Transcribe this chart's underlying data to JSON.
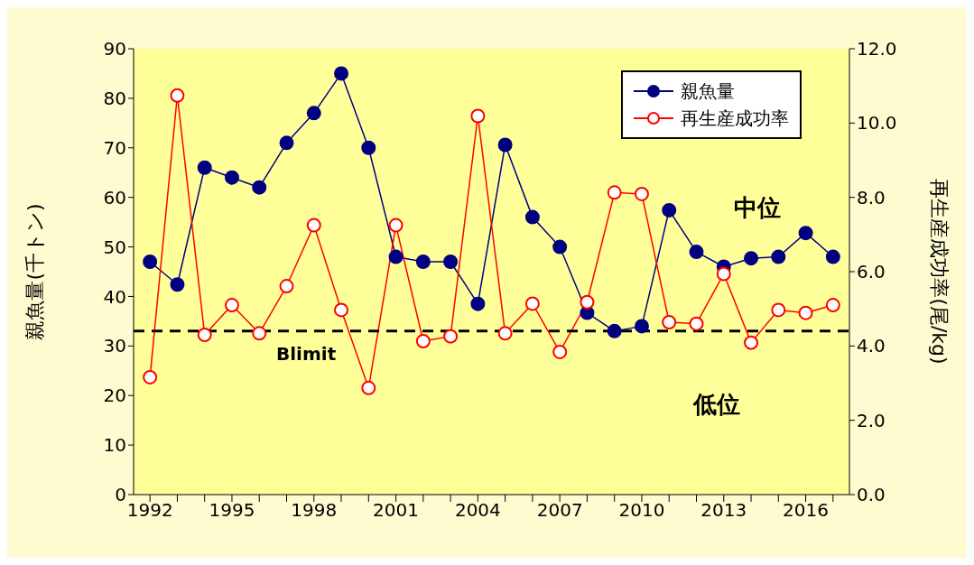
{
  "chart_data": {
    "type": "line",
    "ylabel": "親魚量(千トン)",
    "y2label": "再生産成功率(尾/kg)",
    "x": [
      1992,
      1993,
      1994,
      1995,
      1996,
      1997,
      1998,
      1999,
      2000,
      2001,
      2002,
      2003,
      2004,
      2005,
      2006,
      2007,
      2008,
      2009,
      2010,
      2011,
      2012,
      2013,
      2014,
      2015,
      2016,
      2017
    ],
    "series": [
      {
        "name": "親魚量",
        "color": "#000080",
        "values": [
          47,
          42.4,
          66,
          64,
          62,
          71,
          77,
          85,
          70,
          48,
          47,
          47,
          38.5,
          70.6,
          56,
          50,
          36.7,
          33,
          34,
          57.4,
          49,
          46,
          47.7,
          48,
          52.8,
          48
        ]
      },
      {
        "name": "再生産成功率",
        "color": "#ff0000",
        "axis": "y2",
        "values": [
          3.16,
          10.74,
          4.3,
          5.1,
          4.34,
          5.61,
          7.25,
          4.97,
          2.87,
          7.25,
          4.13,
          4.26,
          10.19,
          4.34,
          5.14,
          3.84,
          5.18,
          8.13,
          8.09,
          4.64,
          4.6,
          5.94,
          4.09,
          4.97,
          4.89,
          5.1
        ]
      }
    ],
    "xlim": [
      1991.4,
      2017.6
    ],
    "xticks": [
      1992,
      {
        "value": 1993,
        "label": null
      },
      {
        "value": 1994,
        "label": null
      },
      1995,
      {
        "value": 1996,
        "label": null
      },
      {
        "value": 1997,
        "label": null
      },
      1998,
      {
        "value": 1999,
        "label": null
      },
      {
        "value": 2000,
        "label": null
      },
      2001,
      {
        "value": 2002,
        "label": null
      },
      {
        "value": 2003,
        "label": null
      },
      2004,
      {
        "value": 2005,
        "label": null
      },
      {
        "value": 2006,
        "label": null
      },
      2007,
      {
        "value": 2008,
        "label": null
      },
      {
        "value": 2009,
        "label": null
      },
      2010,
      {
        "value": 2011,
        "label": null
      },
      {
        "value": 2012,
        "label": null
      },
      2013,
      {
        "value": 2014,
        "label": null
      },
      {
        "value": 2015,
        "label": null
      },
      2016,
      {
        "value": 2017,
        "label": null
      }
    ],
    "ylim": [
      0,
      90
    ],
    "yticks": [
      0,
      10,
      20,
      30,
      40,
      50,
      60,
      70,
      80,
      90
    ],
    "y2lim": [
      0,
      12
    ],
    "y2ticks": [
      {
        "value": 0,
        "label": "0.0"
      },
      {
        "value": 2,
        "label": "2.0"
      },
      {
        "value": 4,
        "label": "4.0"
      },
      {
        "value": 6,
        "label": "6.0"
      },
      {
        "value": 8,
        "label": "8.0"
      },
      {
        "value": 10,
        "label": "10.0"
      },
      {
        "value": 12,
        "label": "12.0"
      }
    ],
    "ref_lines": [
      {
        "axis": "y",
        "value": 33,
        "label": "Blimit",
        "color": "#000000",
        "line_style": "dashed"
      }
    ],
    "annotations": [
      "中位",
      "低位"
    ],
    "marker": "circle",
    "legend": "top right",
    "grid": false
  }
}
